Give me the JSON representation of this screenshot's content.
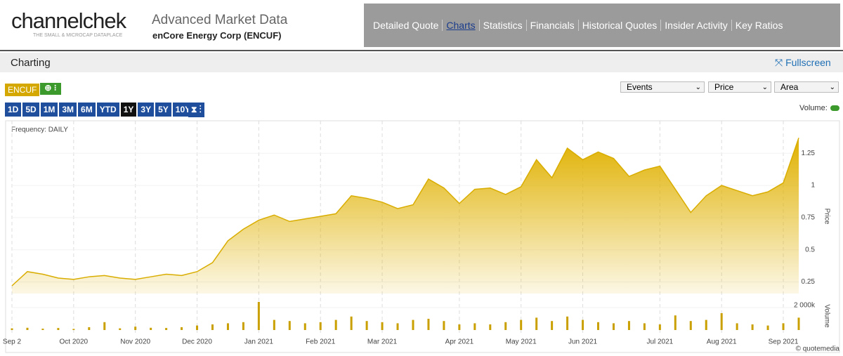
{
  "header": {
    "logo": "channelchek",
    "tagline": "THE SMALL & MICROCAP DATAPLACE",
    "title": "Advanced Market Data",
    "company": "enCore Energy Corp (ENCUF)"
  },
  "nav": [
    "Detailed Quote",
    "Charts",
    "Statistics",
    "Financials",
    "Historical Quotes",
    "Insider Activity",
    "Key Ratios"
  ],
  "section": {
    "title": "Charting",
    "fullscreen": "Fullscreen"
  },
  "toolbar": {
    "symbol": "ENCUF",
    "ranges": [
      "1D",
      "5D",
      "1M",
      "3M",
      "6M",
      "YTD",
      "1Y",
      "3Y",
      "5Y",
      "10Y"
    ],
    "active_range": "1Y",
    "selects": [
      "Events",
      "Price",
      "Area"
    ],
    "volume_label": "Volume:"
  },
  "chart_data": {
    "type": "area",
    "frequency": "Frequency: DAILY",
    "credit": "© quotemedia",
    "categories": [
      "Sep 2",
      null,
      null,
      null,
      "Oct 2020",
      null,
      null,
      null,
      "Nov 2020",
      null,
      null,
      null,
      "Dec 2020",
      null,
      null,
      null,
      "Jan 2021",
      null,
      null,
      null,
      "Feb 2021",
      null,
      null,
      null,
      "Mar 2021",
      null,
      null,
      null,
      null,
      "Apr 2021",
      null,
      null,
      null,
      "May 2021",
      null,
      null,
      null,
      "Jun 2021",
      null,
      null,
      null,
      null,
      "Jul 2021",
      null,
      null,
      null,
      "Aug 2021",
      null,
      null,
      null,
      "Sep 2021",
      null
    ],
    "series": [
      {
        "name": "Price",
        "color": "#d9ad00",
        "values": [
          0.22,
          0.33,
          0.31,
          0.28,
          0.27,
          0.29,
          0.3,
          0.28,
          0.27,
          0.29,
          0.31,
          0.3,
          0.33,
          0.4,
          0.57,
          0.66,
          0.73,
          0.77,
          0.72,
          0.74,
          0.76,
          0.78,
          0.92,
          0.9,
          0.87,
          0.82,
          0.85,
          1.05,
          0.98,
          0.86,
          0.97,
          0.98,
          0.93,
          0.99,
          1.2,
          1.06,
          1.29,
          1.2,
          1.26,
          1.21,
          1.07,
          1.12,
          1.15,
          0.97,
          0.79,
          0.92,
          1.0,
          0.96,
          0.92,
          0.95,
          1.02,
          1.37
        ]
      },
      {
        "name": "Volume",
        "color": "#c9a000",
        "axis": "y2",
        "values": [
          150000,
          200000,
          120000,
          180000,
          100000,
          250000,
          700000,
          150000,
          300000,
          200000,
          180000,
          250000,
          400000,
          500000,
          600000,
          700000,
          2500000,
          900000,
          800000,
          600000,
          700000,
          900000,
          1200000,
          800000,
          700000,
          600000,
          900000,
          1000000,
          800000,
          500000,
          600000,
          500000,
          700000,
          900000,
          1100000,
          800000,
          1200000,
          900000,
          700000,
          600000,
          800000,
          600000,
          500000,
          1300000,
          800000,
          900000,
          1500000,
          600000,
          500000,
          400000,
          600000,
          1100000
        ]
      }
    ],
    "ylim": [
      0.16,
      1.47
    ],
    "yticks": [
      0.25,
      0.5,
      0.75,
      1,
      1.25
    ],
    "y2lim": [
      0,
      2500000
    ],
    "y2ticks": [
      {
        "value": 2000000,
        "label": "2 000k"
      }
    ]
  }
}
